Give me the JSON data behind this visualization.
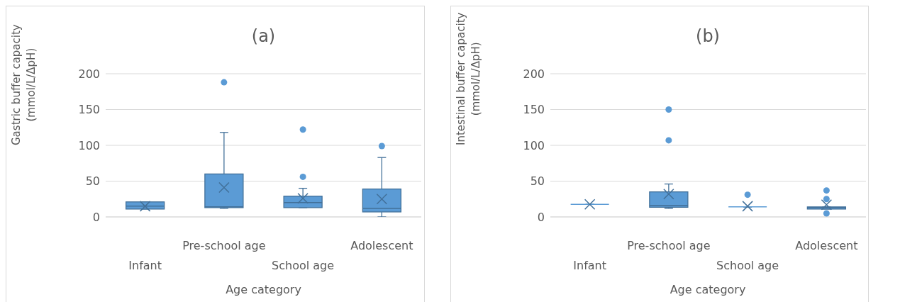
{
  "chart_data": [
    {
      "type": "box",
      "title": "(a)",
      "xlabel": "Age category",
      "ylabel": "Gastric buffer capacity\n(mmol/L/ΔpH)",
      "categories": [
        "Infant",
        "Pre-school age",
        "School age",
        "Adolescent"
      ],
      "ylim": [
        0,
        200
      ],
      "yticks": [
        0,
        50,
        100,
        150,
        200
      ],
      "grid": "y",
      "color": "#5b9bd5",
      "boxes": [
        {
          "low": 11,
          "q1": 11,
          "median": 15,
          "q3": 21,
          "high": 21,
          "mean": 15
        },
        {
          "low": 12,
          "q1": 13,
          "median": 14,
          "q3": 60,
          "high": 118,
          "mean": 41,
          "outliers": [
            188
          ]
        },
        {
          "low": 13,
          "q1": 13,
          "median": 20,
          "q3": 29,
          "high": 40,
          "mean": 26,
          "outliers": [
            56,
            122
          ]
        },
        {
          "low": 0,
          "q1": 7,
          "median": 12,
          "q3": 39,
          "high": 83,
          "mean": 25,
          "outliers": [
            99
          ]
        }
      ]
    },
    {
      "type": "box",
      "title": "(b)",
      "xlabel": "Age category",
      "ylabel": "Intestinal buffer capacity\n(mmol/L/ΔpH)",
      "categories": [
        "Infant",
        "Pre-school age",
        "School age",
        "Adolescent"
      ],
      "ylim": [
        0,
        200
      ],
      "yticks": [
        0,
        50,
        100,
        150,
        200
      ],
      "grid": "y",
      "color": "#5b9bd5",
      "boxes": [
        {
          "low": 17.5,
          "q1": 17.5,
          "median": 17.5,
          "q3": 17.5,
          "high": 17.5,
          "mean": 17.5
        },
        {
          "low": 12,
          "q1": 13.5,
          "median": 16,
          "q3": 35,
          "high": 46,
          "mean": 32,
          "outliers": [
            107,
            150
          ]
        },
        {
          "low": 14,
          "q1": 14,
          "median": 14,
          "q3": 14,
          "high": 14,
          "mean": 15,
          "outliers": [
            31
          ]
        },
        {
          "low": 11,
          "q1": 11,
          "median": 13,
          "q3": 14,
          "high": 14,
          "mean": 17,
          "outliers": [
            5,
            25,
            37
          ]
        }
      ]
    }
  ]
}
